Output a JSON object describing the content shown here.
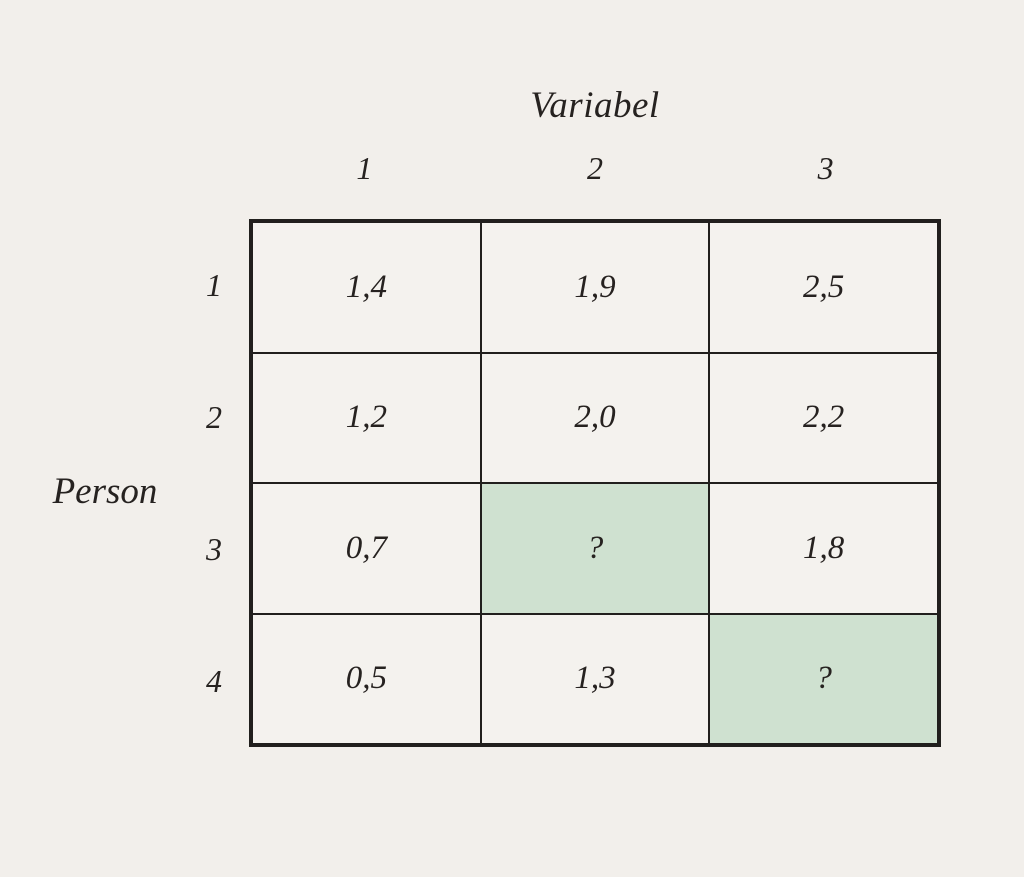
{
  "title": "Variabel",
  "person_label": "Person",
  "columns": [
    "1",
    "2",
    "3"
  ],
  "rows": [
    {
      "label": "1",
      "cells": [
        {
          "value": "1,4",
          "highlight": false
        },
        {
          "value": "1,9",
          "highlight": false
        },
        {
          "value": "2,5",
          "highlight": false
        }
      ]
    },
    {
      "label": "2",
      "cells": [
        {
          "value": "1,2",
          "highlight": false
        },
        {
          "value": "2,0",
          "highlight": false
        },
        {
          "value": "2,2",
          "highlight": false
        }
      ]
    },
    {
      "label": "3",
      "cells": [
        {
          "value": "0,7",
          "highlight": false
        },
        {
          "value": "?",
          "highlight": true
        },
        {
          "value": "1,8",
          "highlight": false
        }
      ]
    },
    {
      "label": "4",
      "cells": [
        {
          "value": "0,5",
          "highlight": false
        },
        {
          "value": "1,3",
          "highlight": false
        },
        {
          "value": "?",
          "highlight": true
        }
      ]
    }
  ],
  "colors": {
    "page_background": "#f2efeb",
    "cell_background": "#f4f2ee",
    "highlight_background": "#cfe1d0",
    "grid_line": "#211f1d",
    "text": "#262220"
  },
  "chart_data": {
    "type": "table",
    "title": "Variabel",
    "column_axis_label": "Variabel",
    "row_axis_label": "Person",
    "columns": [
      "1",
      "2",
      "3"
    ],
    "row_labels": [
      "1",
      "2",
      "3",
      "4"
    ],
    "values": [
      [
        "1,4",
        "1,9",
        "2,5"
      ],
      [
        "1,2",
        "2,0",
        "2,2"
      ],
      [
        "0,7",
        "?",
        "1,8"
      ],
      [
        "0,5",
        "1,3",
        "?"
      ]
    ],
    "highlighted_cells": [
      {
        "row": "3",
        "column": "2"
      },
      {
        "row": "4",
        "column": "3"
      }
    ],
    "decimal_separator": ","
  }
}
